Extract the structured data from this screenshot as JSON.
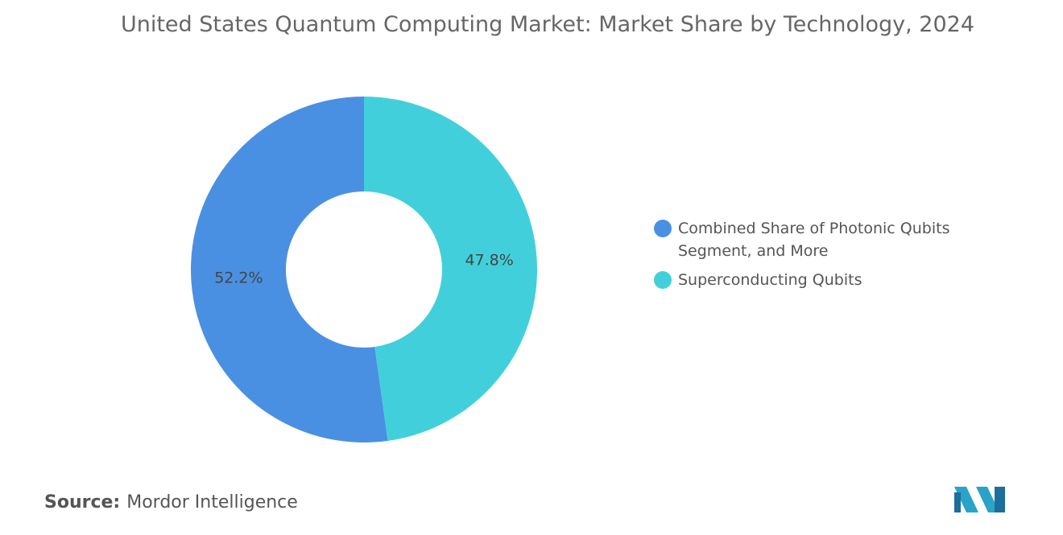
{
  "chart_data": {
    "type": "donut",
    "title": "United States Quantum Computing Market: Market Share by Technology, 2024",
    "categories": [
      "Combined Share of Photonic Qubits Segment, and More",
      "Superconducting Qubits"
    ],
    "values": [
      52.2,
      47.8
    ],
    "value_labels": [
      "52.2%",
      "47.8%"
    ],
    "colors": [
      "#4a90e2",
      "#41d0db"
    ],
    "legend": "right"
  },
  "source": {
    "label": "Source:",
    "text": "Mordor Intelligence"
  }
}
